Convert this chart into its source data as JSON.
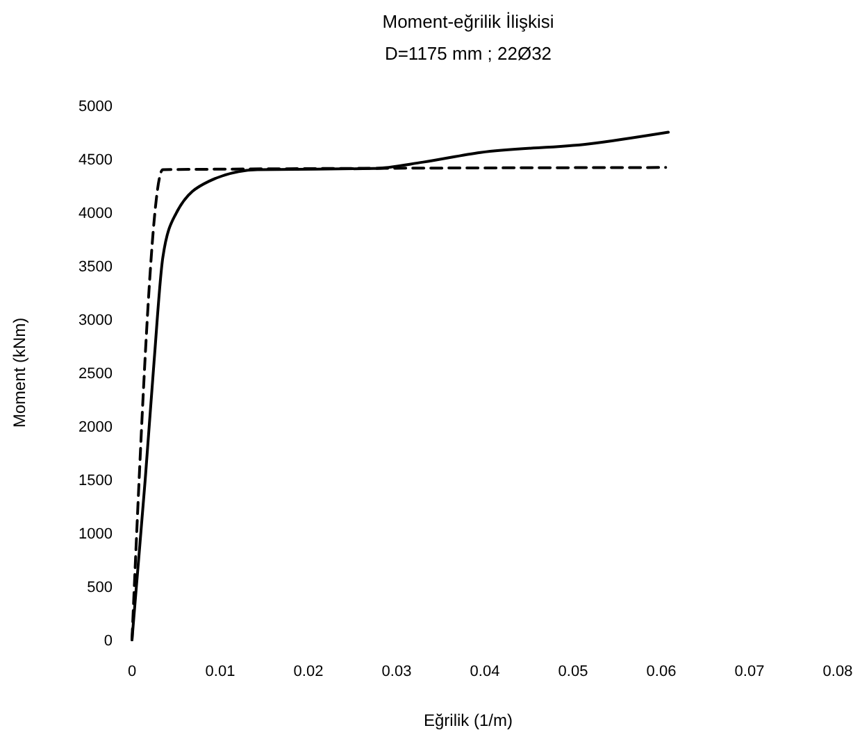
{
  "chart_data": {
    "type": "line",
    "title": "Moment-eğrilik İlişkisi",
    "subtitle": "D=1175 mm ; 22Ø32",
    "xlabel": "Eğrilik (1/m)",
    "ylabel": "Moment (kNm)",
    "xlim": [
      0,
      0.08
    ],
    "xticks": [
      0,
      0.01,
      0.02,
      0.03,
      0.04,
      0.05,
      0.06,
      0.07,
      0.08
    ],
    "ylim": [
      0,
      5000
    ],
    "yticks": [
      0,
      500,
      1000,
      1500,
      2000,
      2500,
      3000,
      3500,
      4000,
      4500,
      5000
    ],
    "grid": false,
    "marker": "none",
    "series": [
      {
        "color": "#000000",
        "line_style": "solid",
        "x": [
          0,
          0.0005,
          0.0015,
          0.0025,
          0.0035,
          0.005,
          0.0087,
          0.0142,
          0.0274,
          0.033,
          0.0395,
          0.0517,
          0.0608
        ],
        "values": [
          0,
          500,
          1500,
          2600,
          3580,
          3990,
          4290,
          4400,
          4410,
          4470,
          4560,
          4640,
          4750
        ]
      },
      {
        "color": "#000000",
        "line_style": "dashed",
        "x": [
          0,
          0.0035,
          0.0605
        ],
        "values": [
          0,
          4400,
          4420
        ]
      }
    ]
  }
}
